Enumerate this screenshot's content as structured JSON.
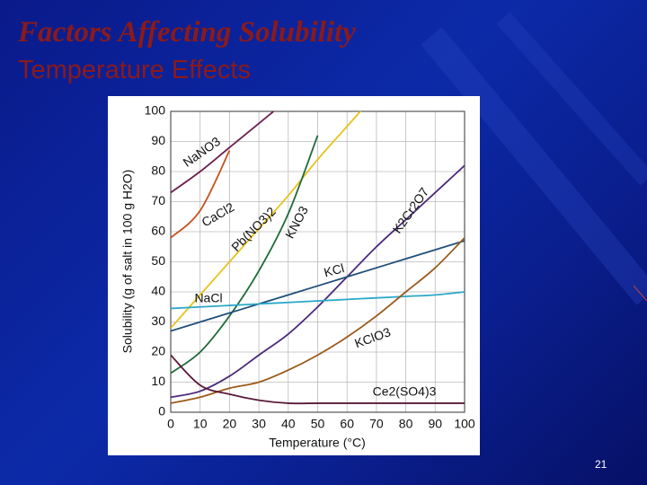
{
  "slide": {
    "title": "Factors Affecting Solubility",
    "subtitle": "Temperature Effects",
    "page_number": 21
  },
  "chart_data": {
    "type": "line",
    "x_label": "Temperature (°C)",
    "y_label": "Solubility (g of salt in 100 g H2O)",
    "x": [
      0,
      10,
      20,
      30,
      40,
      50,
      60,
      70,
      80,
      90,
      100
    ],
    "xlim": [
      0,
      100
    ],
    "xticks": [
      0,
      10,
      20,
      30,
      40,
      50,
      60,
      70,
      80,
      90,
      100
    ],
    "ylim": [
      0,
      100
    ],
    "yticks": [
      0,
      10,
      20,
      30,
      40,
      50,
      60,
      70,
      80,
      90,
      100
    ],
    "grid": true,
    "series": [
      {
        "name": "NaNO3",
        "color": "#6b1f4f",
        "values": [
          73,
          80,
          88,
          96,
          104,
          null,
          null,
          null,
          null,
          null,
          null
        ]
      },
      {
        "name": "CaCl2",
        "color": "#c8501e",
        "values": [
          58,
          67,
          87,
          null,
          null,
          null,
          null,
          null,
          null,
          null,
          null
        ]
      },
      {
        "name": "Pb(NO3)2",
        "color": "#e8c21a",
        "values": [
          28,
          39,
          50,
          61,
          72,
          84,
          95,
          106,
          null,
          null,
          null
        ]
      },
      {
        "name": "KNO3",
        "color": "#1f6b3a",
        "values": [
          13,
          20,
          32,
          47,
          66,
          92,
          null,
          null,
          null,
          null,
          null
        ]
      },
      {
        "name": "K2Cr2O7",
        "color": "#4b2a7a",
        "values": [
          5,
          7,
          12,
          19,
          26,
          35,
          45,
          55,
          64,
          73,
          82
        ]
      },
      {
        "name": "KCl",
        "color": "#1f4f7a",
        "values": [
          27,
          30,
          33,
          36,
          39,
          42,
          45,
          48,
          51,
          54,
          57
        ]
      },
      {
        "name": "NaCl",
        "color": "#2ba8c8",
        "values": [
          34.5,
          35,
          35.5,
          36,
          36.5,
          37,
          37.5,
          38,
          38.5,
          39,
          40
        ]
      },
      {
        "name": "KClO3",
        "color": "#9a5a1a",
        "values": [
          3,
          5,
          8,
          10,
          14,
          19,
          25,
          32,
          40,
          48,
          58
        ]
      },
      {
        "name": "Ce2(SO4)3",
        "color": "#5a1a3a",
        "values": [
          19,
          9,
          6,
          4,
          3,
          3,
          3,
          3,
          3,
          3,
          3
        ]
      }
    ]
  }
}
